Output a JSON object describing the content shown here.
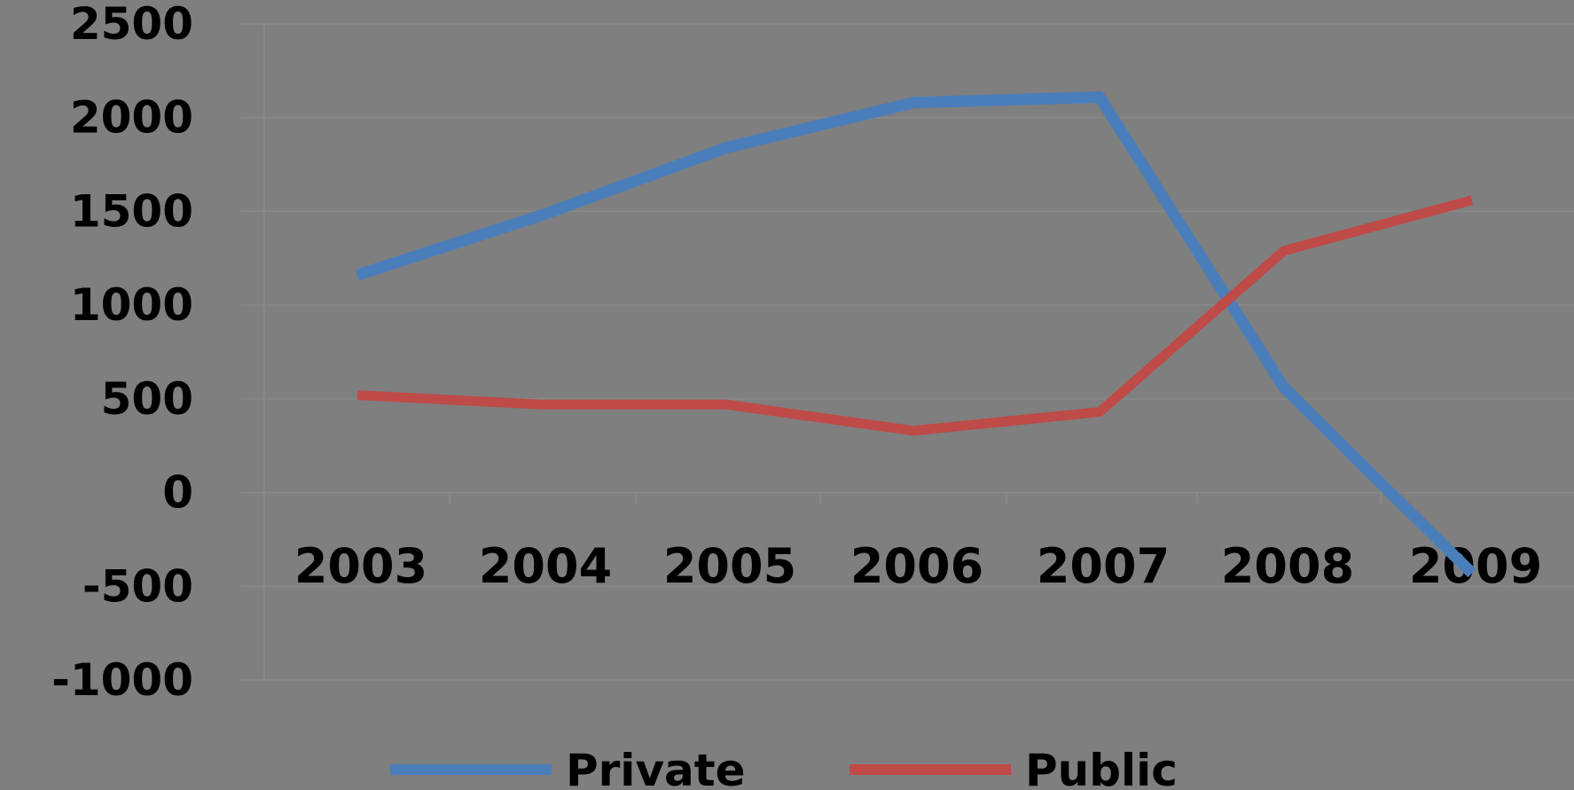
{
  "chart_data": {
    "type": "line",
    "categories": [
      "2003",
      "2004",
      "2005",
      "2006",
      "2007",
      "2008",
      "2009"
    ],
    "series": [
      {
        "name": "Private",
        "color": "#4a7ebb",
        "values": [
          1160,
          1480,
          1840,
          2080,
          2110,
          560,
          -430
        ]
      },
      {
        "name": "Public",
        "color": "#be4b48",
        "values": [
          520,
          470,
          470,
          330,
          430,
          1290,
          1560
        ]
      }
    ],
    "y_ticks": [
      "2500",
      "2000",
      "1500",
      "1000",
      "500",
      "0",
      "-500",
      "-1000"
    ],
    "ylim": [
      -1000,
      2500
    ],
    "grid": true,
    "legend": "bottom",
    "background": "#7f7f7f"
  }
}
